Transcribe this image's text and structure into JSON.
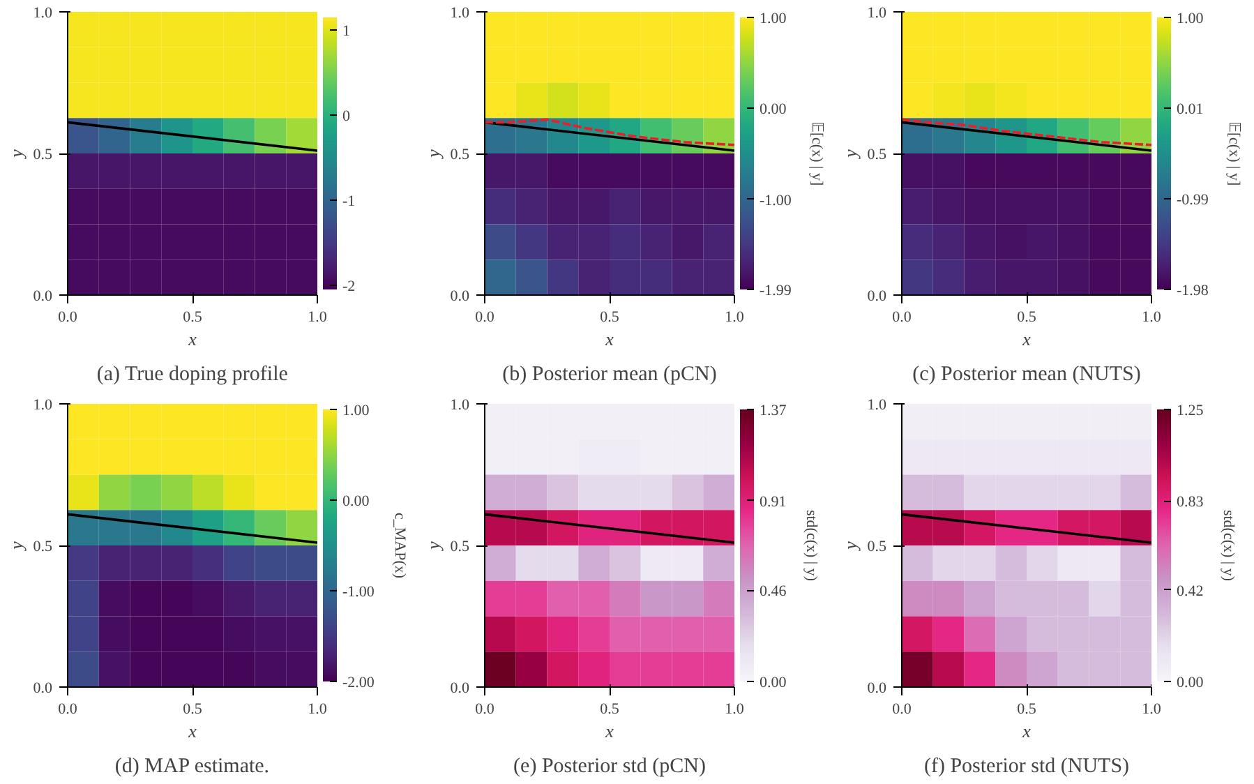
{
  "chart_data": [
    {
      "type": "heatmap",
      "title": "(a) True doping profile",
      "xlabel": "x",
      "ylabel": "y",
      "cells": [
        [
          1.1,
          1.1,
          1.1,
          1.1,
          1.1,
          1.1,
          1.1,
          1.1
        ],
        [
          1.1,
          1.1,
          1.1,
          1.1,
          1.1,
          1.1,
          1.1,
          1.1
        ],
        [
          1.1,
          1.1,
          1.1,
          1.1,
          1.1,
          1.1,
          1.1,
          1.1
        ],
        [
          -1.2,
          -1.0,
          -0.7,
          -0.4,
          -0.1,
          0.2,
          0.5,
          0.7
        ],
        [
          -1.85,
          -1.85,
          -1.85,
          -1.85,
          -1.85,
          -1.85,
          -1.85,
          -1.85
        ],
        [
          -1.95,
          -1.95,
          -1.95,
          -1.95,
          -1.95,
          -1.95,
          -1.95,
          -1.95
        ],
        [
          -1.95,
          -1.95,
          -1.95,
          -1.95,
          -1.95,
          -1.95,
          -1.95,
          -1.95
        ],
        [
          -1.95,
          -1.95,
          -1.95,
          -1.95,
          -1.95,
          -1.95,
          -1.95,
          -1.95
        ]
      ],
      "clim": [
        -2.05,
        1.15
      ],
      "cticks": [
        1,
        0,
        -1,
        -2
      ],
      "xlim": [
        0,
        1
      ],
      "xticks": [
        {
          "value": 0,
          "label": "0.0"
        },
        {
          "value": 0.5,
          "label": "0.5"
        },
        {
          "value": 1,
          "label": "1.0"
        }
      ],
      "ylim": [
        0,
        1
      ],
      "yticks": [
        {
          "value": 0,
          "label": "0.0"
        },
        {
          "value": 0.5,
          "label": "0.5"
        },
        {
          "value": 1,
          "label": "1.0"
        }
      ],
      "series": [
        {
          "type": "line",
          "x": [
            0,
            1
          ],
          "values": [
            0.61,
            0.51
          ],
          "color": "#000000"
        }
      ]
    },
    {
      "type": "heatmap",
      "title": "(b) Posterior mean (pCN)",
      "xlabel": "x",
      "ylabel": "y",
      "clabel": "𝔼[c(x) | y]",
      "cells": [
        [
          1.0,
          1.0,
          1.0,
          1.0,
          1.0,
          1.0,
          1.0,
          1.0
        ],
        [
          1.0,
          1.0,
          1.0,
          1.0,
          1.0,
          1.0,
          1.0,
          1.0
        ],
        [
          1.0,
          0.9,
          0.8,
          0.9,
          1.0,
          1.0,
          1.0,
          1.0
        ],
        [
          -0.9,
          -0.8,
          -0.6,
          -0.4,
          -0.2,
          0.1,
          0.3,
          0.5
        ],
        [
          -1.8,
          -1.8,
          -1.9,
          -1.9,
          -1.9,
          -1.9,
          -1.9,
          -1.9
        ],
        [
          -1.6,
          -1.7,
          -1.8,
          -1.8,
          -1.7,
          -1.8,
          -1.8,
          -1.8
        ],
        [
          -1.3,
          -1.5,
          -1.7,
          -1.7,
          -1.6,
          -1.7,
          -1.8,
          -1.7
        ],
        [
          -1.0,
          -1.2,
          -1.5,
          -1.7,
          -1.6,
          -1.6,
          -1.7,
          -1.7
        ]
      ],
      "clim": [
        -1.99,
        1.0
      ],
      "cticks": [
        {
          "value": 1,
          "label": "1.00"
        },
        {
          "value": 0,
          "label": "0.00"
        },
        {
          "value": -1,
          "label": "-1.00"
        },
        {
          "value": -1.99,
          "label": "-1.99"
        }
      ],
      "xlim": [
        0,
        1
      ],
      "xticks": [
        {
          "value": 0,
          "label": "0.0"
        },
        {
          "value": 0.5,
          "label": "0.5"
        },
        {
          "value": 1,
          "label": "1.0"
        }
      ],
      "ylim": [
        0,
        1
      ],
      "yticks": [
        {
          "value": 0,
          "label": "0.0"
        },
        {
          "value": 0.5,
          "label": "0.5"
        },
        {
          "value": 1,
          "label": "1.0"
        }
      ],
      "series": [
        {
          "type": "line",
          "x": [
            0,
            1
          ],
          "values": [
            0.61,
            0.51
          ],
          "color": "#000000"
        },
        {
          "type": "line",
          "x": [
            0,
            0.1,
            0.25,
            0.4,
            0.6,
            0.8,
            1
          ],
          "values": [
            0.61,
            0.61,
            0.62,
            0.59,
            0.56,
            0.54,
            0.53
          ],
          "color": "#e8202a",
          "line_style": "dashed"
        }
      ]
    },
    {
      "type": "heatmap",
      "title": "(c) Posterior mean (NUTS)",
      "xlabel": "x",
      "ylabel": "y",
      "clabel": "𝔼[c(x) | y]",
      "cells": [
        [
          1.0,
          1.0,
          1.0,
          1.0,
          1.0,
          1.0,
          1.0,
          1.0
        ],
        [
          1.0,
          1.0,
          1.0,
          1.0,
          1.0,
          1.0,
          1.0,
          1.0
        ],
        [
          1.0,
          0.95,
          0.9,
          0.95,
          1.0,
          1.0,
          1.0,
          1.0
        ],
        [
          -0.9,
          -0.8,
          -0.6,
          -0.4,
          -0.2,
          0.1,
          0.3,
          0.5
        ],
        [
          -1.85,
          -1.85,
          -1.9,
          -1.9,
          -1.9,
          -1.9,
          -1.9,
          -1.9
        ],
        [
          -1.75,
          -1.8,
          -1.85,
          -1.85,
          -1.85,
          -1.85,
          -1.9,
          -1.9
        ],
        [
          -1.6,
          -1.7,
          -1.8,
          -1.85,
          -1.8,
          -1.85,
          -1.9,
          -1.9
        ],
        [
          -1.5,
          -1.6,
          -1.75,
          -1.8,
          -1.8,
          -1.85,
          -1.9,
          -1.9
        ]
      ],
      "clim": [
        -1.98,
        1.0
      ],
      "cticks": [
        {
          "value": 1,
          "label": "1.00"
        },
        {
          "value": 0.01,
          "label": "0.01"
        },
        {
          "value": -0.99,
          "label": "-0.99"
        },
        {
          "value": -1.98,
          "label": "-1.98"
        }
      ],
      "xlim": [
        0,
        1
      ],
      "xticks": [
        {
          "value": 0,
          "label": "0.0"
        },
        {
          "value": 0.5,
          "label": "0.5"
        },
        {
          "value": 1,
          "label": "1.0"
        }
      ],
      "ylim": [
        0,
        1
      ],
      "yticks": [
        {
          "value": 0,
          "label": "0.0"
        },
        {
          "value": 0.5,
          "label": "0.5"
        },
        {
          "value": 1,
          "label": "1.0"
        }
      ],
      "series": [
        {
          "type": "line",
          "x": [
            0,
            1
          ],
          "values": [
            0.61,
            0.51
          ],
          "color": "#000000"
        },
        {
          "type": "line",
          "x": [
            0,
            0.1,
            0.25,
            0.4,
            0.6,
            0.8,
            1
          ],
          "values": [
            0.62,
            0.61,
            0.6,
            0.58,
            0.56,
            0.54,
            0.53
          ],
          "color": "#e8202a",
          "line_style": "dashed"
        }
      ]
    },
    {
      "type": "heatmap",
      "title": "(d) MAP estimate.",
      "xlabel": "x",
      "ylabel": "y",
      "clabel": "c_MAP(x)",
      "cells": [
        [
          1.0,
          1.0,
          1.0,
          1.0,
          1.0,
          1.0,
          1.0,
          1.0
        ],
        [
          1.0,
          1.0,
          1.0,
          1.0,
          1.0,
          1.0,
          1.0,
          1.0
        ],
        [
          0.9,
          0.5,
          0.4,
          0.5,
          0.7,
          0.9,
          1.0,
          1.0
        ],
        [
          -0.8,
          -0.8,
          -0.8,
          -0.6,
          -0.3,
          0.0,
          0.3,
          0.5
        ],
        [
          -1.5,
          -1.7,
          -1.7,
          -1.7,
          -1.6,
          -1.4,
          -1.3,
          -1.3
        ],
        [
          -1.4,
          -1.9,
          -1.95,
          -1.95,
          -1.9,
          -1.8,
          -1.7,
          -1.7
        ],
        [
          -1.4,
          -1.9,
          -1.95,
          -1.95,
          -1.95,
          -1.9,
          -1.85,
          -1.85
        ],
        [
          -1.3,
          -1.85,
          -1.95,
          -1.95,
          -1.95,
          -1.95,
          -1.9,
          -1.9
        ]
      ],
      "clim": [
        -2.0,
        1.0
      ],
      "cticks": [
        {
          "value": 1,
          "label": "1.00"
        },
        {
          "value": 0,
          "label": "0.00"
        },
        {
          "value": -1,
          "label": "-1.00"
        },
        {
          "value": -2,
          "label": "-2.00"
        }
      ],
      "xlim": [
        0,
        1
      ],
      "xticks": [
        {
          "value": 0,
          "label": "0.0"
        },
        {
          "value": 0.5,
          "label": "0.5"
        },
        {
          "value": 1,
          "label": "1.0"
        }
      ],
      "ylim": [
        0,
        1
      ],
      "yticks": [
        {
          "value": 0,
          "label": "0.0"
        },
        {
          "value": 0.5,
          "label": "0.5"
        },
        {
          "value": 1,
          "label": "1.0"
        }
      ],
      "series": [
        {
          "type": "line",
          "x": [
            0,
            1
          ],
          "values": [
            0.61,
            0.51
          ],
          "color": "#000000"
        }
      ]
    },
    {
      "type": "heatmap",
      "title": "(e) Posterior std (pCN)",
      "xlabel": "x",
      "ylabel": "y",
      "clabel": "std(c(x) | y)",
      "cells": [
        [
          0.05,
          0.05,
          0.05,
          0.05,
          0.05,
          0.05,
          0.05,
          0.05
        ],
        [
          0.05,
          0.05,
          0.05,
          0.08,
          0.08,
          0.05,
          0.05,
          0.05
        ],
        [
          0.4,
          0.4,
          0.3,
          0.2,
          0.2,
          0.2,
          0.3,
          0.4
        ],
        [
          1.1,
          1.1,
          1.0,
          0.9,
          0.9,
          1.0,
          1.0,
          1.0
        ],
        [
          0.4,
          0.2,
          0.2,
          0.4,
          0.3,
          0.1,
          0.1,
          0.4
        ],
        [
          0.8,
          0.8,
          0.7,
          0.7,
          0.6,
          0.5,
          0.5,
          0.6
        ],
        [
          1.1,
          1.0,
          0.9,
          0.8,
          0.7,
          0.7,
          0.7,
          0.7
        ],
        [
          1.35,
          1.2,
          1.0,
          0.9,
          0.8,
          0.8,
          0.8,
          0.8
        ]
      ],
      "clim": [
        0,
        1.37
      ],
      "cticks": [
        {
          "value": 1.37,
          "label": "1.37"
        },
        {
          "value": 0.91,
          "label": "0.91"
        },
        {
          "value": 0.46,
          "label": "0.46"
        },
        {
          "value": 0,
          "label": "0.00"
        }
      ],
      "xlim": [
        0,
        1
      ],
      "xticks": [
        {
          "value": 0,
          "label": "0.0"
        },
        {
          "value": 0.5,
          "label": "0.5"
        },
        {
          "value": 1,
          "label": "1.0"
        }
      ],
      "ylim": [
        0,
        1
      ],
      "yticks": [
        {
          "value": 0,
          "label": "0.0"
        },
        {
          "value": 0.5,
          "label": "0.5"
        },
        {
          "value": 1,
          "label": "1.0"
        }
      ],
      "series": [
        {
          "type": "line",
          "x": [
            0,
            1
          ],
          "values": [
            0.61,
            0.51
          ],
          "color": "#000000"
        }
      ]
    },
    {
      "type": "heatmap",
      "title": "(f) Posterior std (NUTS)",
      "xlabel": "x",
      "ylabel": "y",
      "clabel": "std(c(x) | y)",
      "cells": [
        [
          0.05,
          0.05,
          0.05,
          0.05,
          0.05,
          0.05,
          0.05,
          0.05
        ],
        [
          0.1,
          0.1,
          0.1,
          0.1,
          0.1,
          0.1,
          0.1,
          0.1
        ],
        [
          0.3,
          0.3,
          0.2,
          0.2,
          0.2,
          0.2,
          0.2,
          0.3
        ],
        [
          1.0,
          1.0,
          0.9,
          0.8,
          0.8,
          0.9,
          0.9,
          1.0
        ],
        [
          0.3,
          0.2,
          0.2,
          0.3,
          0.2,
          0.1,
          0.1,
          0.3
        ],
        [
          0.5,
          0.5,
          0.4,
          0.3,
          0.3,
          0.3,
          0.2,
          0.3
        ],
        [
          0.9,
          0.8,
          0.6,
          0.4,
          0.3,
          0.3,
          0.3,
          0.3
        ],
        [
          1.2,
          1.0,
          0.8,
          0.5,
          0.4,
          0.3,
          0.3,
          0.3
        ]
      ],
      "clim": [
        0,
        1.25
      ],
      "cticks": [
        {
          "value": 1.25,
          "label": "1.25"
        },
        {
          "value": 0.83,
          "label": "0.83"
        },
        {
          "value": 0.42,
          "label": "0.42"
        },
        {
          "value": 0,
          "label": "0.00"
        }
      ],
      "xlim": [
        0,
        1
      ],
      "xticks": [
        {
          "value": 0,
          "label": "0.0"
        },
        {
          "value": 0.5,
          "label": "0.5"
        },
        {
          "value": 1,
          "label": "1.0"
        }
      ],
      "ylim": [
        0,
        1
      ],
      "yticks": [
        {
          "value": 0,
          "label": "0.0"
        },
        {
          "value": 0.5,
          "label": "0.5"
        },
        {
          "value": 1,
          "label": "1.0"
        }
      ],
      "series": [
        {
          "type": "line",
          "x": [
            0,
            1
          ],
          "values": [
            0.61,
            0.51
          ],
          "color": "#000000"
        }
      ]
    }
  ]
}
